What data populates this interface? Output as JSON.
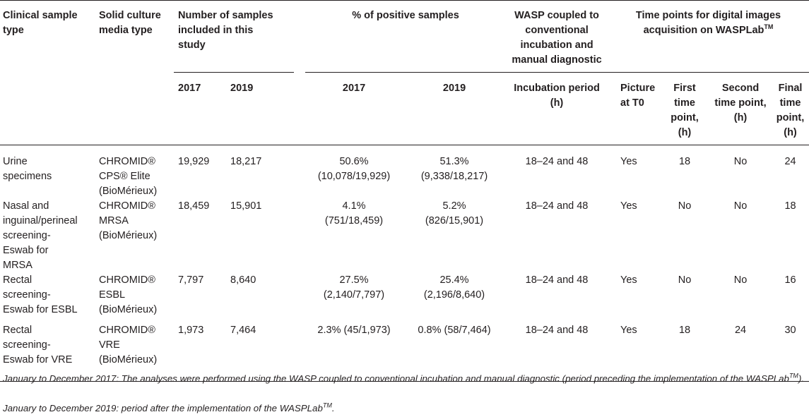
{
  "headers": {
    "sample_type": "Clinical sample type",
    "media_type": "Solid culture media type",
    "num_samples": "Number of samples included in this study",
    "pct_positive": "% of positive samples",
    "wasp": "WASP coupled to conventional incubation and manual diagnostic",
    "timepoints_pre": "Time points for digital images acquisition on WASPLab",
    "timepoints_sup": "TM",
    "year_2017": "2017",
    "year_2019": "2019",
    "incubation_period": "Incubation period (h)",
    "picture_t0": "Picture at T0",
    "first_tp": "First time point, (h)",
    "second_tp": "Second time point, (h)",
    "final_tp": "Final time point, (h)"
  },
  "rows": [
    {
      "sample": "Urine specimens",
      "media": "CHROMID® CPS® Elite (BioMérieux)",
      "n2017": "19,929",
      "n2019": "18,217",
      "p2017": "50.6% (10,078/19,929)",
      "p2019": "51.3% (9,338/18,217)",
      "incubation": "18–24 and 48",
      "t0": "Yes",
      "first": "18",
      "second": "No",
      "final": "24"
    },
    {
      "sample": "Nasal and inguinal/perineal screening-Eswab for MRSA",
      "media": "CHROMID® MRSA (BioMérieux)",
      "n2017": "18,459",
      "n2019": "15,901",
      "p2017": "4.1% (751/18,459)",
      "p2019": "5.2% (826/15,901)",
      "incubation": "18–24 and 48",
      "t0": "Yes",
      "first": "No",
      "second": "No",
      "final": "18"
    },
    {
      "sample": "Rectal screening-Eswab for ESBL",
      "media": "CHROMID® ESBL (BioMérieux)",
      "n2017": "7,797",
      "n2019": "8,640",
      "p2017": "27.5% (2,140/7,797)",
      "p2019": "25.4% (2,196/8,640)",
      "incubation": "18–24 and 48",
      "t0": "Yes",
      "first": "No",
      "second": "No",
      "final": "16"
    },
    {
      "sample": "Rectal screening-Eswab for VRE",
      "media": "CHROMID® VRE (BioMérieux)",
      "n2017": "1,973",
      "n2019": "7,464",
      "p2017": "2.3% (45/1,973)",
      "p2019": "0.8% (58/7,464)",
      "incubation": "18–24 and 48",
      "t0": "Yes",
      "first": "18",
      "second": "24",
      "final": "30"
    }
  ],
  "footnotes": {
    "note1_pre": "January to December 2017: The analyses were performed using the WASP coupled to conventional incubation and manual diagnostic (period preceding the implementation of the WASPLab",
    "note1_sup": "TM",
    "note1_post": ").",
    "note2_pre": "January to December 2019: period after the implementation of the WASPLab",
    "note2_sup": "TM",
    "note2_post": "."
  }
}
